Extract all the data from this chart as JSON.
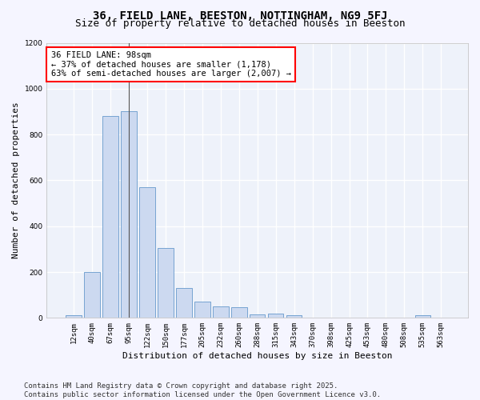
{
  "title": "36, FIELD LANE, BEESTON, NOTTINGHAM, NG9 5FJ",
  "subtitle": "Size of property relative to detached houses in Beeston",
  "xlabel": "Distribution of detached houses by size in Beeston",
  "ylabel": "Number of detached properties",
  "categories": [
    "12sqm",
    "40sqm",
    "67sqm",
    "95sqm",
    "122sqm",
    "150sqm",
    "177sqm",
    "205sqm",
    "232sqm",
    "260sqm",
    "288sqm",
    "315sqm",
    "343sqm",
    "370sqm",
    "398sqm",
    "425sqm",
    "453sqm",
    "480sqm",
    "508sqm",
    "535sqm",
    "563sqm"
  ],
  "values": [
    10,
    200,
    880,
    900,
    570,
    305,
    130,
    70,
    50,
    48,
    15,
    18,
    13,
    0,
    0,
    0,
    0,
    0,
    0,
    10,
    0
  ],
  "bar_color": "#ccd9f0",
  "bar_edge_color": "#6699cc",
  "annotation_text": "36 FIELD LANE: 98sqm\n← 37% of detached houses are smaller (1,178)\n63% of semi-detached houses are larger (2,007) →",
  "vline_bar_index": 3,
  "ylim": [
    0,
    1200
  ],
  "yticks": [
    0,
    200,
    400,
    600,
    800,
    1000,
    1200
  ],
  "background_color": "#eef2fa",
  "grid_color": "#ffffff",
  "footer": "Contains HM Land Registry data © Crown copyright and database right 2025.\nContains public sector information licensed under the Open Government Licence v3.0.",
  "title_fontsize": 10,
  "subtitle_fontsize": 9,
  "xlabel_fontsize": 8,
  "ylabel_fontsize": 8,
  "annotation_fontsize": 7.5,
  "tick_fontsize": 6.5,
  "footer_fontsize": 6.5
}
